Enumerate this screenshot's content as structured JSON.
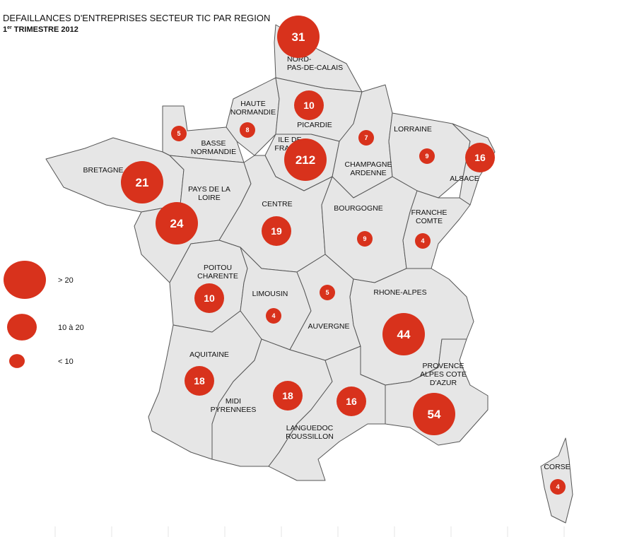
{
  "header": {
    "title": "DEFAILLANCES D'ENTREPRISES SECTEUR TIC PAR REGION",
    "subtitle": {
      "number": "1",
      "suffix": "er",
      "text": "TRIMESTRE 2012"
    }
  },
  "legend": [
    {
      "label": "> 20",
      "min": 20
    },
    {
      "label": "10 à 20",
      "min": 10,
      "max": 20
    },
    {
      "label": "< 10",
      "max": 10
    }
  ],
  "regions": [
    {
      "lines": [
        "NORD-",
        "PAS-DE-CALAIS"
      ],
      "value": 31
    },
    {
      "lines": [
        "HAUTE",
        "NORMANDIE"
      ],
      "value": 8
    },
    {
      "lines": [
        "BASSE",
        "NORMANDIE"
      ],
      "value": 5
    },
    {
      "lines": [
        "PICARDIE"
      ],
      "value": 10
    },
    {
      "lines": [
        "ILE DE",
        "FRANCE"
      ],
      "value": 212
    },
    {
      "lines": [
        "CHAMPAGNE",
        "ARDENNE"
      ],
      "value": 7
    },
    {
      "lines": [
        "LORRAINE"
      ],
      "value": 9
    },
    {
      "lines": [
        "ALSACE"
      ],
      "value": 16
    },
    {
      "lines": [
        "BRETAGNE"
      ],
      "value": 21
    },
    {
      "lines": [
        "PAYS DE LA",
        "LOIRE"
      ],
      "value": 24
    },
    {
      "lines": [
        "CENTRE"
      ],
      "value": 19
    },
    {
      "lines": [
        "BOURGOGNE"
      ],
      "value": 9
    },
    {
      "lines": [
        "FRANCHE",
        "COMTE"
      ],
      "value": 4
    },
    {
      "lines": [
        "POITOU",
        "CHARENTE"
      ],
      "value": 10
    },
    {
      "lines": [
        "LIMOUSIN"
      ],
      "value": 4
    },
    {
      "lines": [
        "AUVERGNE"
      ],
      "value": 5
    },
    {
      "lines": [
        "RHONE-ALPES"
      ],
      "value": 44
    },
    {
      "lines": [
        "AQUITAINE"
      ],
      "value": 18
    },
    {
      "lines": [
        "MIDI",
        "PYRENNEES"
      ],
      "value": 18
    },
    {
      "lines": [
        "LANGUEDOC",
        "ROUSSILLON"
      ],
      "value": 16
    },
    {
      "lines": [
        "PROVENCE",
        "ALPES COTE",
        "D'AZUR"
      ],
      "value": 54
    },
    {
      "lines": [
        "CORSE"
      ],
      "value": 4
    }
  ]
}
